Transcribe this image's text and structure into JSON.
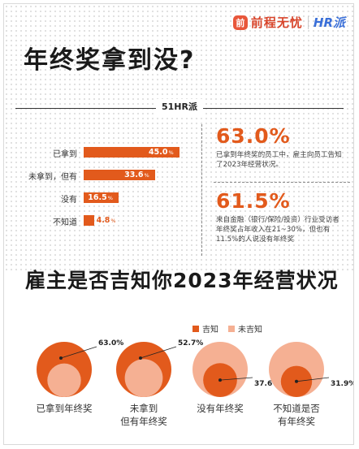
{
  "header": {
    "brand_mark": "前",
    "brand_name": "前程无忧",
    "brand_name_2": "HR派",
    "title": "年终奖拿到没?",
    "source_badge": "51HR派"
  },
  "highlights": [
    {
      "value": "63.0%",
      "text": "已拿到年终奖的员工中，雇主向员工告知了2023年经营状况。"
    },
    {
      "value": "61.5%",
      "text": "来自金融（银行/保险/投资）行业受访者年终奖占年收入在21~30%，但也有11.5%的人说没有年终奖"
    }
  ],
  "section2": {
    "title": "雇主是否吉知你2023年经营状况"
  },
  "colors": {
    "accent": "#e25a1c",
    "light": "#f5b093"
  },
  "chart_data": [
    {
      "type": "bar",
      "orientation": "horizontal",
      "categories": [
        "已拿到",
        "未拿到，但有",
        "没有",
        "不知道"
      ],
      "values": [
        45.0,
        33.6,
        16.5,
        4.8
      ],
      "value_labels": [
        "45.0",
        "33.6",
        "16.5",
        "4.8"
      ],
      "unit": "%",
      "xlim": [
        0,
        45
      ]
    },
    {
      "type": "area",
      "legend": [
        "吉知",
        "未吉知"
      ],
      "legend_placement": "top-right",
      "categories": [
        "已拿到年终奖",
        "未拿到\n但有年终奖",
        "没有年终奖",
        "不知道是否\n有年终奖"
      ],
      "values": [
        63.0,
        52.7,
        37.6,
        31.9
      ],
      "value_labels": [
        "63.0%",
        "52.7%",
        "37.6%",
        "31.9%"
      ]
    }
  ]
}
